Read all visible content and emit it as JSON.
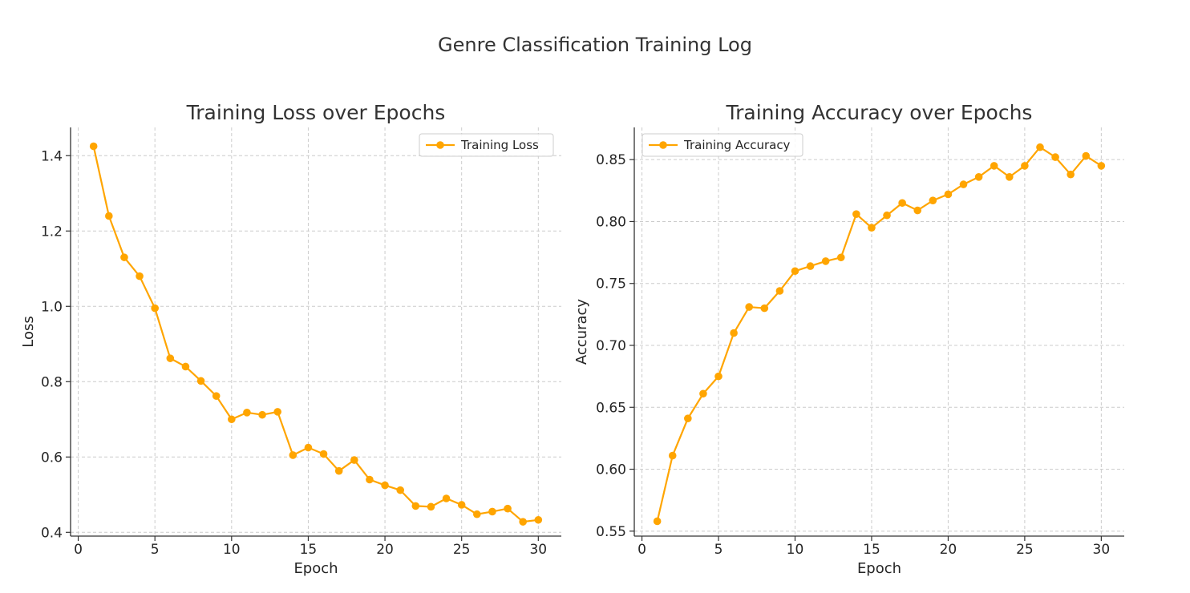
{
  "suptitle": "Genre Classification Training Log",
  "chart_data": [
    {
      "type": "line",
      "title": "Training Loss over Epochs",
      "xlabel": "Epoch",
      "ylabel": "Loss",
      "xlim": [
        -0.5,
        31.5
      ],
      "ylim": [
        0.39,
        1.475
      ],
      "xticks": [
        0,
        5,
        10,
        15,
        20,
        25,
        30
      ],
      "yticks": [
        0.4,
        0.6,
        0.8,
        1.0,
        1.2,
        1.4
      ],
      "ytick_labels": [
        "0.4",
        "0.6",
        "0.8",
        "1.0",
        "1.2",
        "1.4"
      ],
      "grid": true,
      "legend_position": "top-right",
      "color": "#FFA500",
      "series": [
        {
          "name": "Training Loss",
          "x": [
            1,
            2,
            3,
            4,
            5,
            6,
            7,
            8,
            9,
            10,
            11,
            12,
            13,
            14,
            15,
            16,
            17,
            18,
            19,
            20,
            21,
            22,
            23,
            24,
            25,
            26,
            27,
            28,
            29,
            30
          ],
          "values": [
            1.425,
            1.24,
            1.13,
            1.08,
            0.995,
            0.862,
            0.84,
            0.802,
            0.762,
            0.7,
            0.718,
            0.712,
            0.72,
            0.605,
            0.625,
            0.608,
            0.563,
            0.592,
            0.54,
            0.525,
            0.512,
            0.47,
            0.468,
            0.49,
            0.473,
            0.448,
            0.455,
            0.463,
            0.428,
            0.433
          ]
        }
      ]
    },
    {
      "type": "line",
      "title": "Training Accuracy over Epochs",
      "xlabel": "Epoch",
      "ylabel": "Accuracy",
      "xlim": [
        -0.5,
        31.5
      ],
      "ylim": [
        0.546,
        0.876
      ],
      "xticks": [
        0,
        5,
        10,
        15,
        20,
        25,
        30
      ],
      "yticks": [
        0.55,
        0.6,
        0.65,
        0.7,
        0.75,
        0.8,
        0.85
      ],
      "ytick_labels": [
        "0.55",
        "0.60",
        "0.65",
        "0.70",
        "0.75",
        "0.80",
        "0.85"
      ],
      "grid": true,
      "legend_position": "top-left",
      "color": "#FFA500",
      "series": [
        {
          "name": "Training Accuracy",
          "x": [
            1,
            2,
            3,
            4,
            5,
            6,
            7,
            8,
            9,
            10,
            11,
            12,
            13,
            14,
            15,
            16,
            17,
            18,
            19,
            20,
            21,
            22,
            23,
            24,
            25,
            26,
            27,
            28,
            29,
            30
          ],
          "values": [
            0.558,
            0.611,
            0.641,
            0.661,
            0.675,
            0.71,
            0.731,
            0.73,
            0.744,
            0.76,
            0.764,
            0.768,
            0.771,
            0.806,
            0.795,
            0.805,
            0.815,
            0.809,
            0.817,
            0.822,
            0.83,
            0.836,
            0.845,
            0.836,
            0.845,
            0.86,
            0.852,
            0.838,
            0.853,
            0.845
          ]
        }
      ]
    }
  ]
}
